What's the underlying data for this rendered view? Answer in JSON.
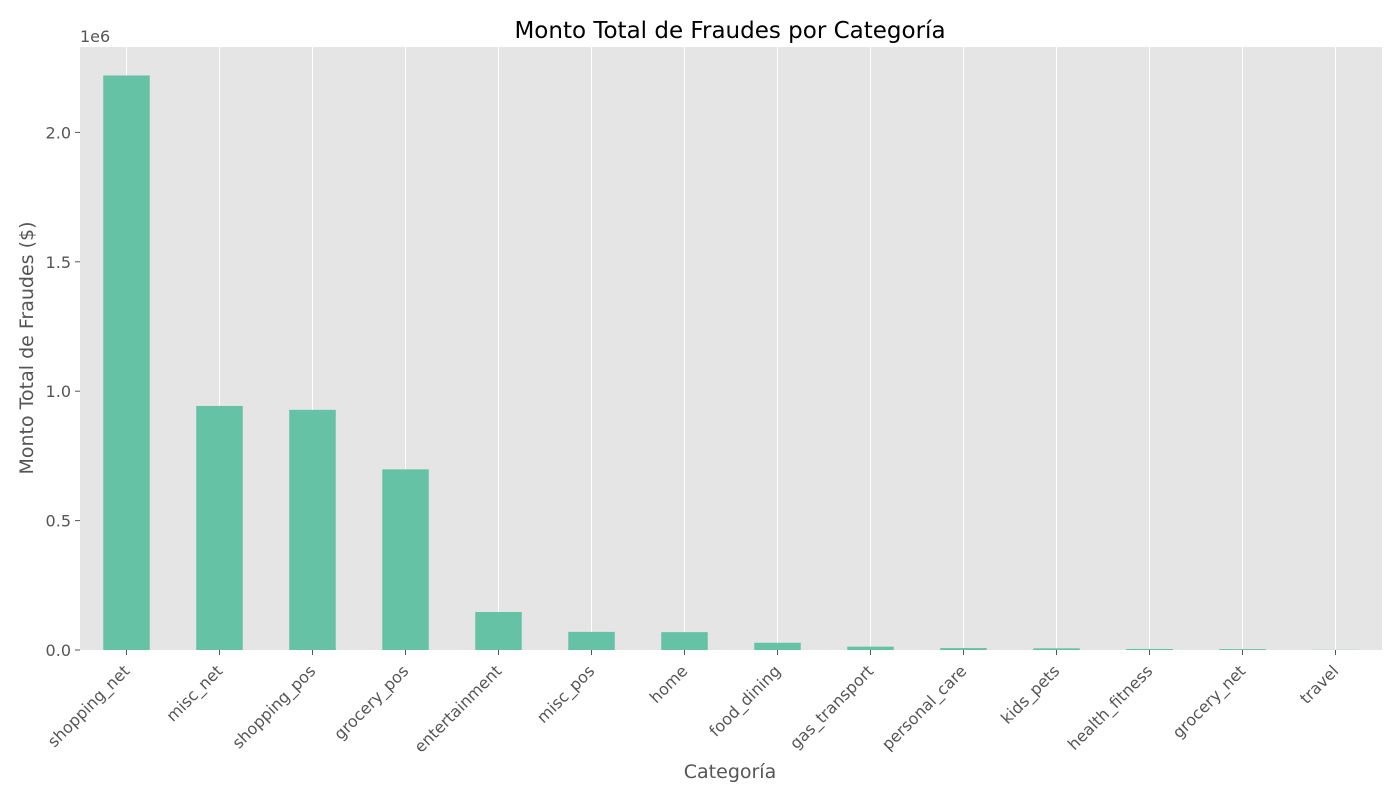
{
  "chart_data": {
    "type": "bar",
    "title": "Monto Total de Fraudes por Categoría",
    "xlabel": "Categoría",
    "ylabel": "Monto Total de Fraudes ($)",
    "y_offset_label": "1e6",
    "y_scale": 1000000,
    "ylim": [
      0,
      2330000
    ],
    "yticks": [
      0,
      500000,
      1000000,
      1500000,
      2000000
    ],
    "ytick_labels": [
      "0.0",
      "0.5",
      "1.0",
      "1.5",
      "2.0"
    ],
    "grid": true,
    "bar_color": "#66c2a5",
    "background_color": "#e5e5e5",
    "categories": [
      "shopping_net",
      "misc_net",
      "shopping_pos",
      "grocery_pos",
      "entertainment",
      "misc_pos",
      "home",
      "food_dining",
      "gas_transport",
      "personal_care",
      "kids_pets",
      "health_fitness",
      "grocery_net",
      "travel"
    ],
    "values": [
      2220000,
      943000,
      928000,
      698000,
      147000,
      70000,
      69000,
      28000,
      13000,
      7500,
      6500,
      4000,
      3500,
      500
    ]
  }
}
